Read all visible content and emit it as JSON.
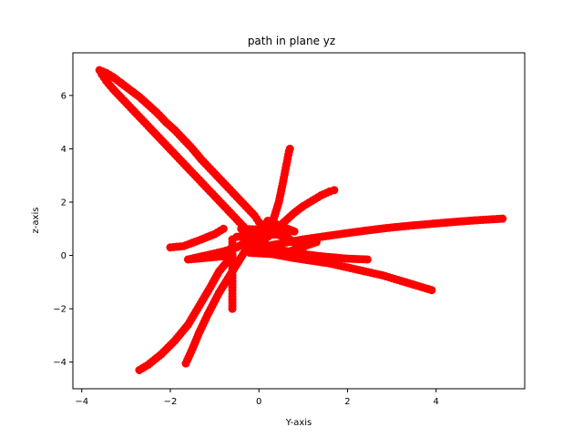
{
  "chart_data": {
    "type": "scatter",
    "title": "path in plane yz",
    "xlabel": "Y-axis",
    "ylabel": "z-axis",
    "xlim": [
      -4.2,
      6.0
    ],
    "ylim": [
      -5.0,
      7.6
    ],
    "xticks": [
      -4,
      -2,
      0,
      2,
      4
    ],
    "yticks": [
      -4,
      -2,
      0,
      2,
      4,
      6
    ],
    "xtick_labels": [
      "−4",
      "−2",
      "0",
      "2",
      "4"
    ],
    "ytick_labels": [
      "−4",
      "−2",
      "0",
      "2",
      "4",
      "6"
    ],
    "marker_color": "#ff0000",
    "grid": false,
    "series": [
      {
        "values": [
          [
            -3.6,
            6.95
          ],
          [
            -3.45,
            6.85
          ],
          [
            -3.3,
            6.7
          ],
          [
            -3.1,
            6.45
          ],
          [
            -2.9,
            6.2
          ],
          [
            -2.7,
            5.95
          ],
          [
            -2.5,
            5.65
          ],
          [
            -2.3,
            5.35
          ],
          [
            -2.1,
            5.0
          ],
          [
            -1.9,
            4.7
          ],
          [
            -1.7,
            4.35
          ],
          [
            -1.5,
            4.0
          ],
          [
            -1.3,
            3.6
          ],
          [
            -1.1,
            3.25
          ],
          [
            -0.9,
            2.9
          ],
          [
            -0.7,
            2.55
          ],
          [
            -0.5,
            2.2
          ],
          [
            -0.3,
            1.85
          ],
          [
            -0.1,
            1.5
          ],
          [
            0.0,
            1.25
          ],
          [
            -3.55,
            6.8
          ],
          [
            -3.45,
            6.55
          ],
          [
            -3.3,
            6.25
          ],
          [
            -3.1,
            5.9
          ],
          [
            -2.9,
            5.55
          ],
          [
            -2.7,
            5.2
          ],
          [
            -2.5,
            4.85
          ],
          [
            -2.3,
            4.5
          ],
          [
            -2.1,
            4.15
          ],
          [
            -1.9,
            3.8
          ],
          [
            -1.7,
            3.45
          ],
          [
            -1.5,
            3.1
          ],
          [
            -1.3,
            2.75
          ],
          [
            -1.1,
            2.4
          ],
          [
            -0.9,
            2.05
          ],
          [
            -0.7,
            1.7
          ],
          [
            -0.5,
            1.35
          ],
          [
            -0.3,
            1.0
          ],
          [
            -0.1,
            0.7
          ],
          [
            0.0,
            0.5
          ],
          [
            0.0,
            0.3
          ],
          [
            0.5,
            0.45
          ],
          [
            1.0,
            0.6
          ],
          [
            1.5,
            0.72
          ],
          [
            2.0,
            0.84
          ],
          [
            2.5,
            0.95
          ],
          [
            3.0,
            1.05
          ],
          [
            3.5,
            1.13
          ],
          [
            4.0,
            1.2
          ],
          [
            4.5,
            1.27
          ],
          [
            5.0,
            1.33
          ],
          [
            5.5,
            1.38
          ],
          [
            -0.2,
            0.1
          ],
          [
            0.3,
            0.05
          ],
          [
            0.8,
            -0.1
          ],
          [
            1.2,
            -0.2
          ],
          [
            1.6,
            -0.3
          ],
          [
            2.0,
            -0.45
          ],
          [
            2.4,
            -0.6
          ],
          [
            2.8,
            -0.75
          ],
          [
            3.2,
            -0.95
          ],
          [
            3.5,
            -1.1
          ],
          [
            3.9,
            -1.3
          ],
          [
            0.0,
            0.4
          ],
          [
            0.5,
            0.2
          ],
          [
            1.0,
            0.05
          ],
          [
            1.5,
            -0.05
          ],
          [
            2.0,
            -0.12
          ],
          [
            2.45,
            -0.15
          ],
          [
            0.0,
            0.4
          ],
          [
            0.2,
            0.7
          ],
          [
            0.4,
            1.0
          ],
          [
            0.6,
            1.3
          ],
          [
            0.8,
            1.6
          ],
          [
            1.0,
            1.85
          ],
          [
            1.2,
            2.05
          ],
          [
            1.4,
            2.25
          ],
          [
            1.6,
            2.4
          ],
          [
            1.7,
            2.45
          ],
          [
            0.1,
            0.5
          ],
          [
            0.3,
            1.2
          ],
          [
            0.45,
            2.0
          ],
          [
            0.55,
            2.8
          ],
          [
            0.62,
            3.4
          ],
          [
            0.68,
            3.9
          ],
          [
            0.7,
            4.0
          ],
          [
            -0.8,
            1.0
          ],
          [
            -1.0,
            0.8
          ],
          [
            -1.3,
            0.6
          ],
          [
            -1.7,
            0.35
          ],
          [
            -2.0,
            0.3
          ],
          [
            -0.3,
            0.5
          ],
          [
            -0.5,
            0.3
          ],
          [
            -0.8,
            0.15
          ],
          [
            -1.2,
            0.0
          ],
          [
            -1.6,
            -0.15
          ],
          [
            -0.6,
            0.0
          ],
          [
            -0.9,
            -0.6
          ],
          [
            -1.1,
            -1.2
          ],
          [
            -1.35,
            -1.9
          ],
          [
            -1.6,
            -2.6
          ],
          [
            -1.9,
            -3.2
          ],
          [
            -2.2,
            -3.7
          ],
          [
            -2.5,
            -4.1
          ],
          [
            -2.7,
            -4.3
          ],
          [
            -0.3,
            0.2
          ],
          [
            -0.6,
            -0.6
          ],
          [
            -0.9,
            -1.4
          ],
          [
            -1.15,
            -2.2
          ],
          [
            -1.35,
            -2.9
          ],
          [
            -1.5,
            -3.5
          ],
          [
            -1.65,
            -4.05
          ],
          [
            -0.6,
            0.6
          ],
          [
            -0.6,
            -0.4
          ],
          [
            -0.6,
            -1.2
          ],
          [
            -0.6,
            -2.0
          ],
          [
            -0.5,
            0.7
          ],
          [
            0.5,
            0.8
          ],
          [
            1.0,
            0.3
          ],
          [
            0.3,
            0.9
          ],
          [
            -0.4,
            1.0
          ],
          [
            0.8,
            0.9
          ],
          [
            0.2,
            1.3
          ],
          [
            -0.2,
            0.4
          ],
          [
            0.6,
            0.1
          ],
          [
            1.3,
            0.5
          ]
        ]
      }
    ]
  }
}
